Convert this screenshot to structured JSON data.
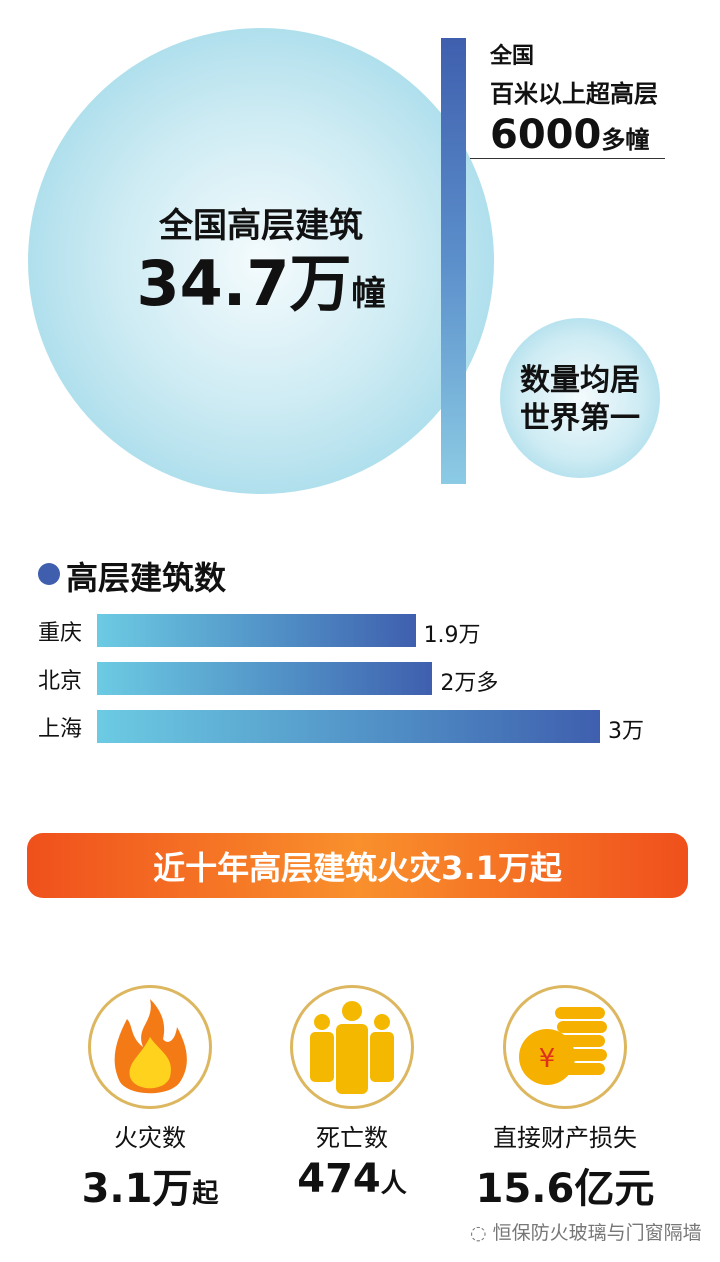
{
  "hero": {
    "label": "全国高层建筑",
    "value": "34.7万",
    "unit": "幢"
  },
  "side": {
    "line1": "全国",
    "line2": "百米以上超高层",
    "value": "6000",
    "unit": "多幢"
  },
  "badge": {
    "line1": "数量均居",
    "line2": "世界第一"
  },
  "chart_data": {
    "type": "bar",
    "orientation": "horizontal",
    "title": "高层建筑数",
    "categories": [
      "重庆",
      "北京",
      "上海"
    ],
    "values": [
      1.9,
      2.0,
      3.0
    ],
    "value_labels": [
      "1.9万",
      "2万多",
      "3万"
    ],
    "unit": "万",
    "xlim": [
      0,
      3
    ],
    "grid": false
  },
  "banner": "近十年高层建筑火灾3.1万起",
  "stats": [
    {
      "icon": "fire-icon",
      "label": "火灾数",
      "value": "3.1万",
      "unit": "起"
    },
    {
      "icon": "people-icon",
      "label": "死亡数",
      "value": "474",
      "unit": "人"
    },
    {
      "icon": "coins-icon",
      "label": "直接财产损失",
      "value": "15.6亿元",
      "unit": ""
    }
  ],
  "watermark": "恒保防火玻璃与门窗隔墙",
  "colors": {
    "accent_blue": "#3f5fae",
    "banner_orange": "#f0501c",
    "icon_gold": "#f5b800"
  }
}
